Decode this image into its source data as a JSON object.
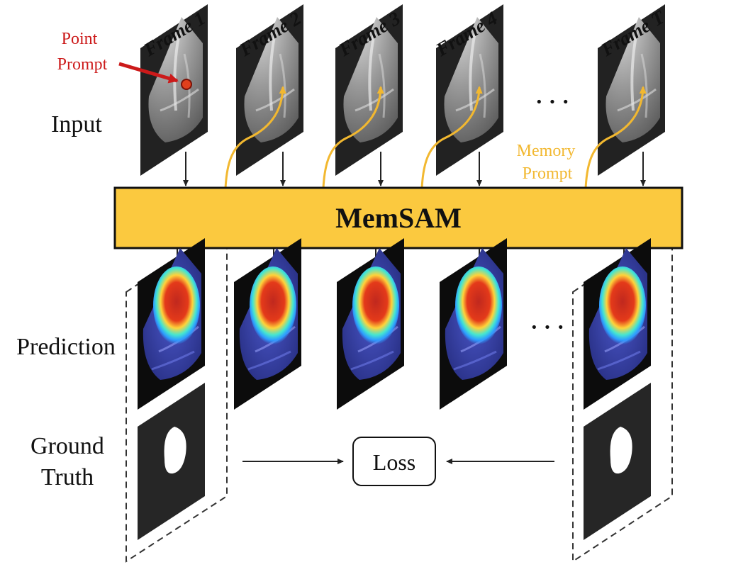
{
  "row_labels": {
    "input": "Input",
    "prediction": "Prediction",
    "ground_truth_line1": "Ground",
    "ground_truth_line2": "Truth"
  },
  "frames": [
    "Frame 1",
    "Frame 2",
    "Frame 3",
    "Frame 4",
    "Frame T"
  ],
  "point_prompt": {
    "line1": "Point",
    "line2": "Prompt",
    "color": "#cc1a1a"
  },
  "memory_prompt": {
    "line1": "Memory",
    "line2": "Prompt",
    "color": "#f2b830"
  },
  "model_label": "MemSAM",
  "model_color": "#fbc93f",
  "ellipsis": "· · ·",
  "loss_label": "Loss"
}
